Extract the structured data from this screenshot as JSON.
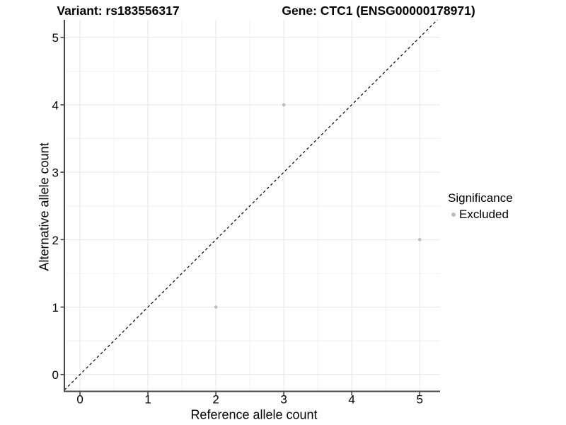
{
  "header": {
    "variant_title": "Variant: rs183556317",
    "gene_title": "Gene: CTC1 (ENSG00000178971)"
  },
  "legend": {
    "title": "Significance",
    "items": [
      {
        "label": "Excluded",
        "color": "#bdbdbd",
        "marker": "circle-icon"
      }
    ]
  },
  "chart_data": {
    "type": "scatter",
    "title": "Variant: rs183556317 — Gene: CTC1 (ENSG00000178971)",
    "xlabel": "Reference allele count",
    "ylabel": "Alternative allele count",
    "xlim": [
      -0.23,
      5.3
    ],
    "ylim": [
      -0.25,
      5.26
    ],
    "x_ticks": [
      0,
      1,
      2,
      3,
      4,
      5
    ],
    "y_ticks": [
      0,
      1,
      2,
      3,
      4,
      5
    ],
    "grid": "major+minor",
    "legend_position": "right",
    "series": [
      {
        "name": "Excluded",
        "color": "#bdbdbd",
        "points": [
          {
            "x": 2,
            "y": 1
          },
          {
            "x": 3,
            "y": 4
          },
          {
            "x": 5,
            "y": 2
          }
        ]
      }
    ],
    "reference_line": {
      "type": "identity",
      "slope": 1,
      "intercept": 0,
      "style": "dashed",
      "color": "#000000"
    }
  },
  "colors": {
    "background": "#ffffff",
    "axis_line": "#474747",
    "tick_mark": "#474747",
    "grid_major": "#e6e6e6",
    "grid_minor": "#f2f2f2",
    "text": "#000000",
    "point": "#bdbdbd"
  }
}
